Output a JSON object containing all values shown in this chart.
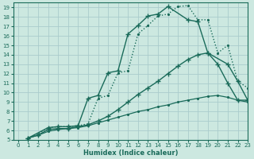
{
  "xlabel": "Humidex (Indice chaleur)",
  "xlim": [
    -0.5,
    23
  ],
  "ylim": [
    5,
    19.5
  ],
  "background_color": "#cce8e0",
  "grid_color": "#aacccc",
  "line_color": "#1a6b5a",
  "yticks": [
    5,
    6,
    7,
    8,
    9,
    10,
    11,
    12,
    13,
    14,
    15,
    16,
    17,
    18,
    19
  ],
  "xticks": [
    0,
    1,
    2,
    3,
    4,
    5,
    6,
    7,
    8,
    9,
    10,
    11,
    12,
    13,
    14,
    15,
    16,
    17,
    18,
    19,
    20,
    21,
    22,
    23
  ],
  "series": [
    {
      "x": [
        1,
        2,
        3,
        4,
        5,
        6,
        7,
        8,
        9,
        10,
        11,
        12,
        13,
        14,
        15,
        16,
        17,
        18,
        19,
        20,
        21,
        22,
        23
      ],
      "y": [
        5.2,
        5.6,
        6.3,
        6.4,
        6.4,
        6.5,
        6.7,
        9.4,
        9.7,
        12.1,
        12.3,
        16.2,
        17.1,
        18.1,
        18.3,
        19.1,
        19.2,
        17.7,
        17.7,
        14.2,
        15.0,
        11.2,
        10.5
      ],
      "linestyle": "dotted",
      "marker": ".",
      "markersize": 2.5,
      "lw": 1.0
    },
    {
      "x": [
        1,
        3,
        4,
        5,
        6,
        7,
        8,
        9,
        10,
        11,
        12,
        13,
        14,
        15,
        17,
        18,
        19,
        21,
        22,
        23
      ],
      "y": [
        5.2,
        6.3,
        6.4,
        6.4,
        6.5,
        9.4,
        9.7,
        12.1,
        12.3,
        16.2,
        17.1,
        18.1,
        18.3,
        19.1,
        17.7,
        17.5,
        14.2,
        13.0,
        11.2,
        9.2
      ],
      "linestyle": "-",
      "marker": "+",
      "markersize": 4,
      "lw": 1.0
    },
    {
      "x": [
        1,
        2,
        3,
        4,
        5,
        6,
        7,
        8,
        9,
        10,
        11,
        12,
        13,
        14,
        15,
        16,
        17,
        18,
        19,
        20,
        21,
        22,
        23
      ],
      "y": [
        5.2,
        5.5,
        6.1,
        6.2,
        6.2,
        6.4,
        6.6,
        7.0,
        7.5,
        8.2,
        9.0,
        9.8,
        10.5,
        11.2,
        12.0,
        12.8,
        13.5,
        14.0,
        14.2,
        13.0,
        11.0,
        9.2,
        9.2
      ],
      "linestyle": "-",
      "marker": "+",
      "markersize": 4,
      "lw": 1.0
    },
    {
      "x": [
        1,
        2,
        3,
        4,
        5,
        6,
        7,
        8,
        9,
        10,
        11,
        12,
        13,
        14,
        15,
        16,
        17,
        18,
        19,
        20,
        21,
        22,
        23
      ],
      "y": [
        5.2,
        5.5,
        5.9,
        6.1,
        6.2,
        6.3,
        6.5,
        6.8,
        7.1,
        7.4,
        7.7,
        8.0,
        8.2,
        8.5,
        8.7,
        9.0,
        9.2,
        9.4,
        9.6,
        9.7,
        9.5,
        9.2,
        9.0
      ],
      "linestyle": "-",
      "marker": ".",
      "markersize": 2.5,
      "lw": 0.9
    }
  ]
}
